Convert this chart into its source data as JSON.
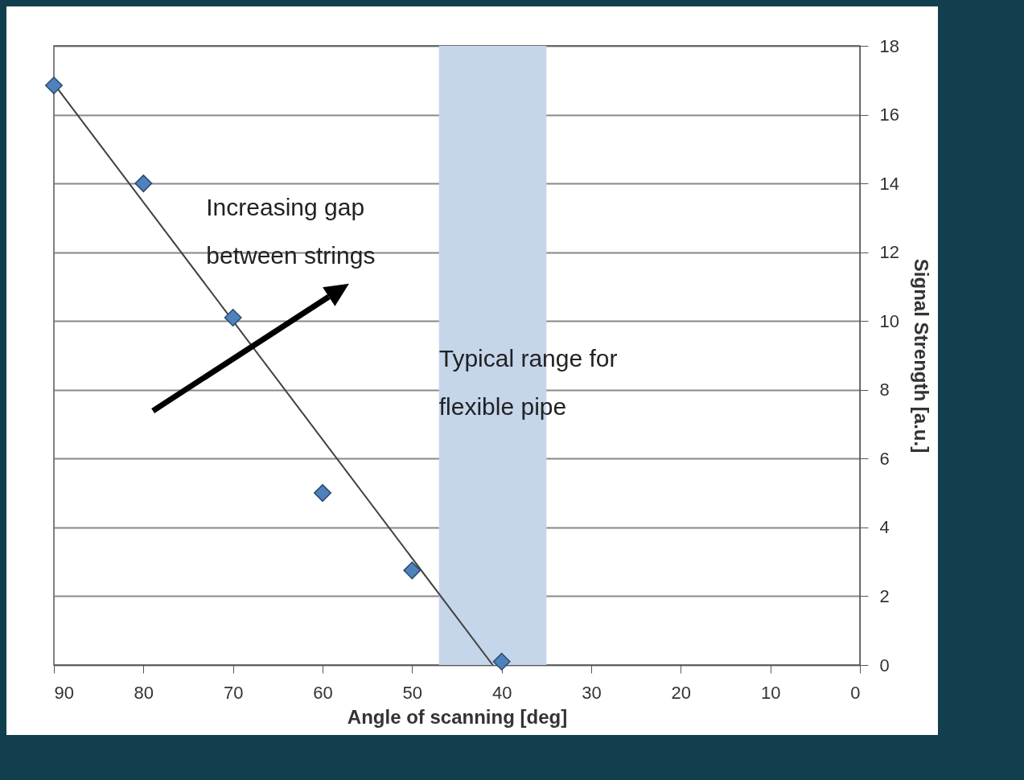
{
  "chart_data": {
    "type": "scatter",
    "xlabel": "Angle of scanning  [deg]",
    "ylabel": "Signal Strength [a.u.]",
    "xlim": [
      90,
      0
    ],
    "xticks": [
      90,
      80,
      70,
      60,
      50,
      40,
      30,
      20,
      10,
      0
    ],
    "ylim": [
      0,
      18
    ],
    "yticks": [
      0,
      2,
      4,
      6,
      8,
      10,
      12,
      14,
      16,
      18
    ],
    "grid": "y",
    "series": [
      {
        "type": "line",
        "x": [
          90,
          41
        ],
        "values": [
          16.9,
          0
        ],
        "color": "#404040"
      },
      {
        "x": [
          90,
          80,
          70,
          60,
          50,
          40
        ],
        "values": [
          16.85,
          14,
          10.1,
          5,
          2.75,
          0.1
        ],
        "color": "#4f81bd",
        "marker": "diamond"
      }
    ],
    "bands": [
      {
        "axis": "x",
        "from": 47,
        "to": 35,
        "label": "Typical range for flexible pipe",
        "color": "#c5d5ea"
      }
    ],
    "annotations": [
      "Increasing gap between strings"
    ]
  }
}
